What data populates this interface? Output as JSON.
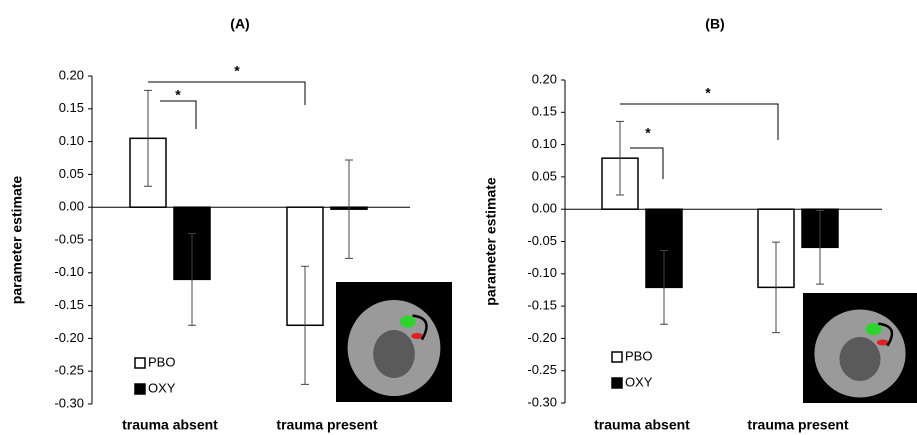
{
  "chart_data": [
    {
      "type": "bar",
      "title": "(A)",
      "y_label": "parameter estimate",
      "categories": [
        "trauma absent",
        "trauma present"
      ],
      "series": [
        {
          "name": "PBO",
          "color": "#ffffff",
          "values": [
            0.105,
            -0.18
          ],
          "errors": [
            0.073,
            0.09
          ]
        },
        {
          "name": "OXY",
          "color": "#000000",
          "values": [
            -0.11,
            -0.003
          ],
          "errors": [
            0.07,
            0.075
          ]
        }
      ],
      "ylim": [
        -0.3,
        0.2
      ],
      "yticks": [
        {
          "value": 0.2,
          "label": "0.20"
        },
        0.15,
        {
          "value": 0.1,
          "label": "0.10"
        },
        0.05,
        {
          "value": 0,
          "label": "0.00"
        },
        -0.05,
        {
          "value": -0.1,
          "label": "-0.10"
        },
        -0.15,
        {
          "value": -0.2,
          "label": "-0.20"
        },
        -0.25,
        {
          "value": -0.3,
          "label": "-0.30"
        }
      ],
      "annotations": [
        "*",
        "*"
      ]
    },
    {
      "type": "bar",
      "title": "(B)",
      "y_label": "parameter estimate",
      "categories": [
        "trauma absent",
        "trauma present"
      ],
      "series": [
        {
          "name": "PBO",
          "color": "#ffffff",
          "values": [
            0.079,
            -0.121
          ],
          "errors": [
            0.057,
            0.07
          ]
        },
        {
          "name": "OXY",
          "color": "#000000",
          "values": [
            -0.121,
            -0.059
          ],
          "errors": [
            0.057,
            0.057
          ]
        }
      ],
      "ylim": [
        -0.3,
        0.2
      ],
      "yticks": [
        {
          "value": 0.2,
          "label": "0.20"
        },
        0.15,
        {
          "value": 0.1,
          "label": "0.10"
        },
        0.05,
        {
          "value": 0,
          "label": "0.00"
        },
        -0.05,
        {
          "value": -0.1,
          "label": "-0.10"
        },
        -0.15,
        {
          "value": -0.2,
          "label": "-0.20"
        },
        -0.25,
        {
          "value": -0.3,
          "label": "-0.30"
        }
      ],
      "annotations": [
        "*",
        "*"
      ]
    }
  ]
}
